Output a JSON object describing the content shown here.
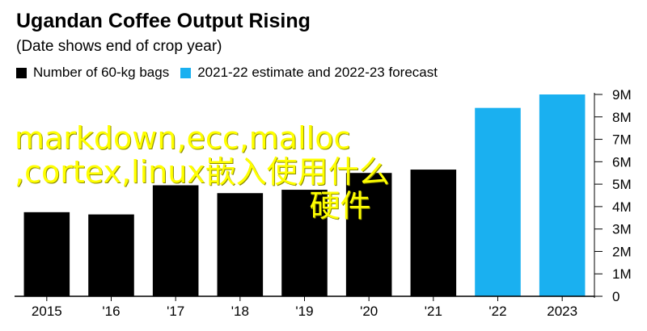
{
  "chart_data": {
    "type": "bar",
    "title": "Ugandan Coffee Output Rising",
    "subtitle": "(Date shows end of crop year)",
    "categories": [
      "2015",
      "'16",
      "'17",
      "'18",
      "'19",
      "'20",
      "'21",
      "'22",
      "2023"
    ],
    "values": [
      3.75,
      3.65,
      4.95,
      4.6,
      4.75,
      5.5,
      5.65,
      8.4,
      9.0
    ],
    "series": [
      {
        "name": "Number of 60-kg bags",
        "color": "#000000",
        "indices": [
          0,
          1,
          2,
          3,
          4,
          5,
          6
        ]
      },
      {
        "name": "2021-22 estimate and 2022-23 forecast",
        "color": "#1ab0f0",
        "indices": [
          7,
          8
        ]
      }
    ],
    "yticks": [
      "0",
      "1M",
      "2M",
      "3M",
      "4M",
      "5M",
      "6M",
      "7M",
      "8M",
      "9M"
    ],
    "ylim": [
      0,
      9
    ],
    "y_axis_side": "right",
    "legend_position": "top-left"
  },
  "overlay_text": {
    "line1": "markdown,ecc,malloc",
    "line2": ",cortex,linux嵌入使用什么",
    "line3": "硬件"
  }
}
